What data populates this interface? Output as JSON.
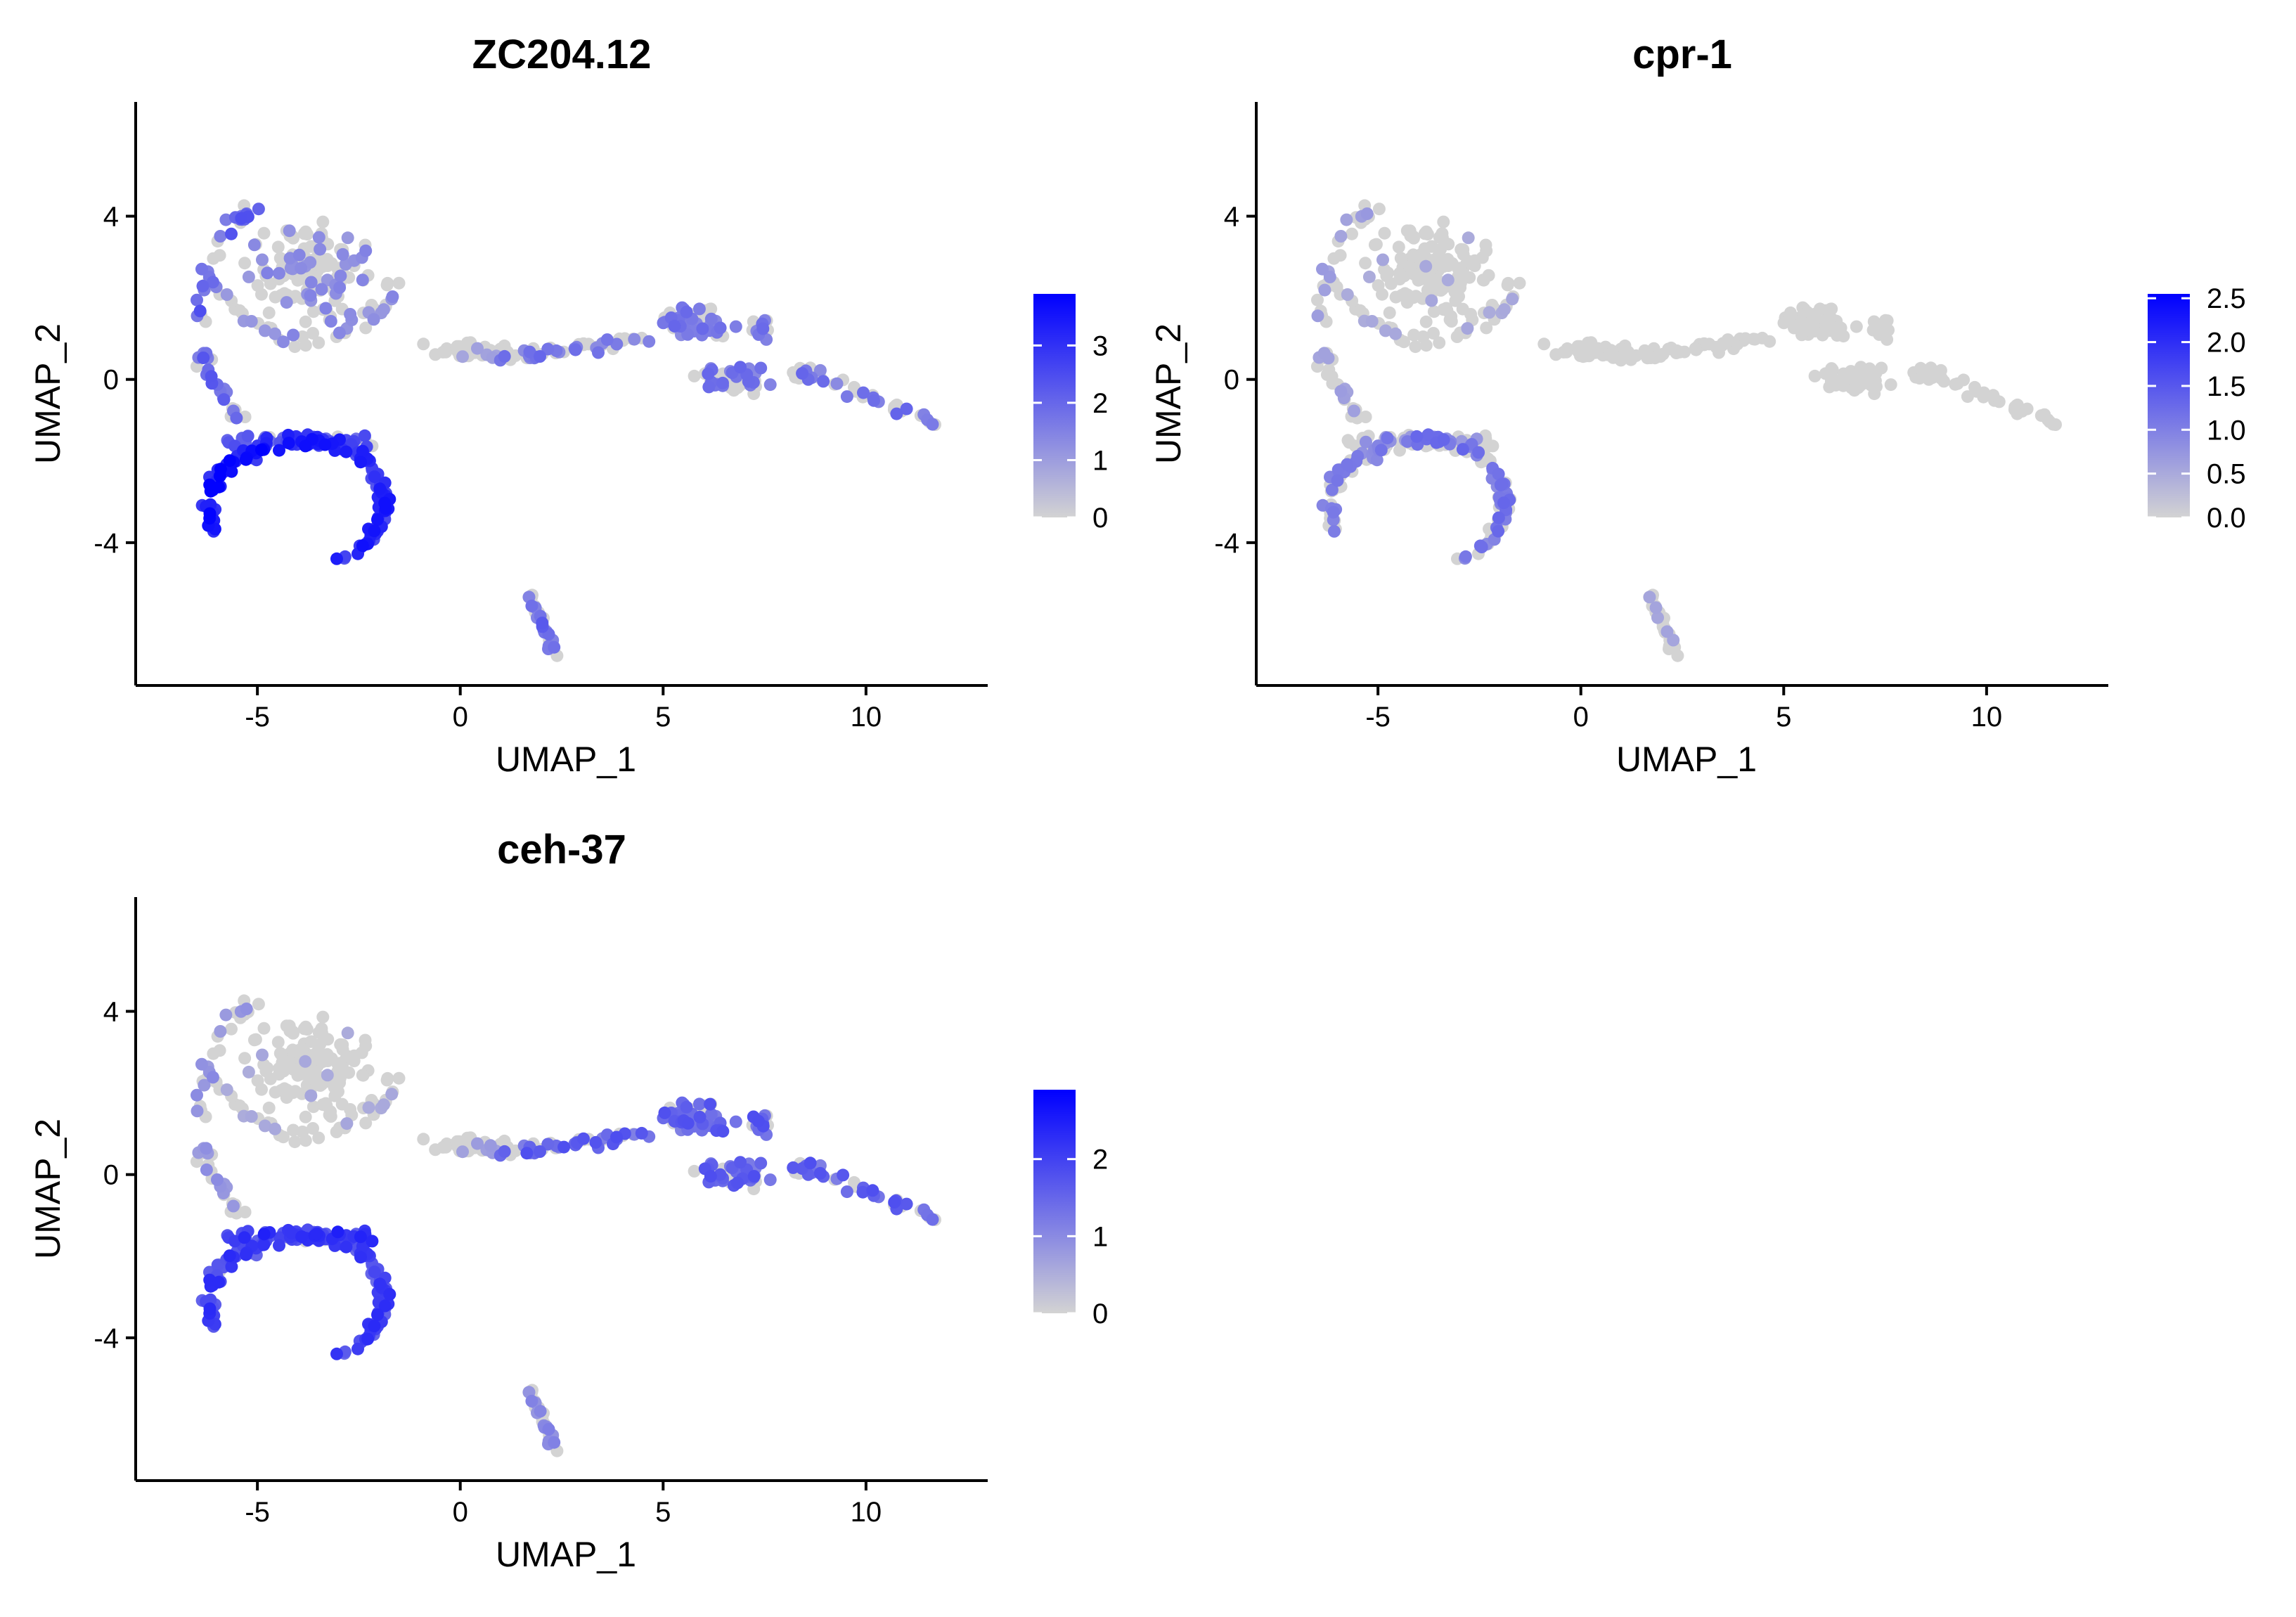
{
  "chart_data": [
    {
      "type": "scatter",
      "title": "ZC204.12",
      "xlabel": "UMAP_1",
      "ylabel": "UMAP_2",
      "xlim": [
        -8,
        13
      ],
      "ylim": [
        -7.5,
        6.8
      ],
      "xticks": [
        -5,
        0,
        5,
        10
      ],
      "yticks": [
        -4,
        0,
        4
      ],
      "grid": false,
      "legend": {
        "type": "colorbar",
        "placement": "right",
        "min": 0,
        "max": 3.9,
        "ticks": [
          0,
          1,
          2,
          3
        ]
      },
      "colors": {
        "low": "#d3d3d3",
        "high": "#0000ff"
      },
      "series": [
        {
          "expression_profile": [
            {
              "cluster": "top-left-lobe",
              "level": 0.18
            },
            {
              "cluster": "left-rim",
              "level": 0.4
            },
            {
              "cluster": "left-band",
              "level": 0.45
            },
            {
              "cluster": "lower-ring",
              "level": 0.75
            },
            {
              "cluster": "lower-ring-bottom",
              "level": 0.9
            },
            {
              "cluster": "stem",
              "level": 0.05
            },
            {
              "cluster": "right-arm",
              "level": 0.3
            },
            {
              "cluster": "bottom-cluster",
              "level": 0.35
            }
          ]
        }
      ]
    },
    {
      "type": "scatter",
      "title": "cpr-1",
      "xlabel": "UMAP_1",
      "ylabel": "UMAP_2",
      "xlim": [
        -8,
        13
      ],
      "ylim": [
        -7.5,
        6.8
      ],
      "xticks": [
        -5,
        0,
        5,
        10
      ],
      "yticks": [
        -4,
        0,
        4
      ],
      "grid": false,
      "legend": {
        "type": "colorbar",
        "placement": "right",
        "min": 0,
        "max": 2.55,
        "ticks": [
          "0.0",
          "0.5",
          "1.0",
          "1.5",
          "2.0",
          "2.5"
        ]
      },
      "colors": {
        "low": "#d3d3d3",
        "high": "#0000ff"
      },
      "series": [
        {
          "expression_profile": [
            {
              "cluster": "top-left-lobe",
              "level": 0.02
            },
            {
              "cluster": "left-rim",
              "level": 0.08
            },
            {
              "cluster": "left-band",
              "level": 0.12
            },
            {
              "cluster": "lower-ring",
              "level": 0.3
            },
            {
              "cluster": "lower-ring-bottom",
              "level": 0.25
            },
            {
              "cluster": "stem",
              "level": 0.0
            },
            {
              "cluster": "right-arm",
              "level": 0.0
            },
            {
              "cluster": "bottom-cluster",
              "level": 0.05
            }
          ]
        }
      ]
    },
    {
      "type": "scatter",
      "title": "ceh-37",
      "xlabel": "UMAP_1",
      "ylabel": "UMAP_2",
      "xlim": [
        -8,
        13
      ],
      "ylim": [
        -7.5,
        6.8
      ],
      "xticks": [
        -5,
        0,
        5,
        10
      ],
      "yticks": [
        -4,
        0,
        4
      ],
      "grid": false,
      "legend": {
        "type": "colorbar",
        "placement": "right",
        "min": 0,
        "max": 2.9,
        "ticks": [
          0,
          1,
          2
        ]
      },
      "colors": {
        "low": "#d3d3d3",
        "high": "#0000ff"
      },
      "series": [
        {
          "expression_profile": [
            {
              "cluster": "top-left-lobe",
              "level": 0.02
            },
            {
              "cluster": "left-rim",
              "level": 0.15
            },
            {
              "cluster": "left-band",
              "level": 0.6
            },
            {
              "cluster": "lower-ring",
              "level": 0.55
            },
            {
              "cluster": "lower-ring-bottom",
              "level": 0.55
            },
            {
              "cluster": "stem",
              "level": 0.08
            },
            {
              "cluster": "right-arm",
              "level": 0.4
            },
            {
              "cluster": "bottom-cluster",
              "level": 0.2
            }
          ]
        }
      ]
    }
  ]
}
